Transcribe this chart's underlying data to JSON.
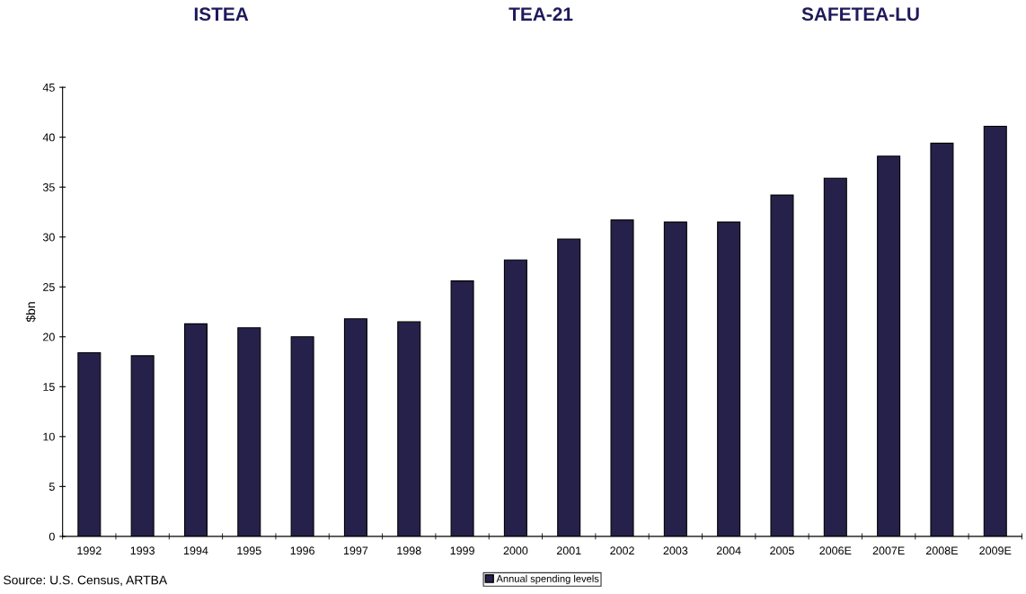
{
  "chart_data": {
    "type": "bar",
    "ylabel": "$bn",
    "categories": [
      "1992",
      "1993",
      "1994",
      "1995",
      "1996",
      "1997",
      "1998",
      "1999",
      "2000",
      "2001",
      "2002",
      "2003",
      "2004",
      "2005",
      "2006E",
      "2007E",
      "2008E",
      "2009E"
    ],
    "series": [
      {
        "name": "Annual spending levels",
        "color": "#26214a",
        "values": [
          18.4,
          18.1,
          21.3,
          20.9,
          20.0,
          21.8,
          21.5,
          25.6,
          27.7,
          29.8,
          31.7,
          31.5,
          31.5,
          34.2,
          35.9,
          38.1,
          39.4,
          41.1
        ]
      }
    ],
    "ylim": [
      0,
      45
    ],
    "yticks": [
      0,
      5,
      10,
      15,
      20,
      25,
      30,
      35,
      40,
      45
    ],
    "grid": false,
    "legend": "bottom",
    "annotations": [
      "ISTEA",
      "TEA-21",
      "SAFETEA-LU",
      "Source: U.S. Census, ARTBA"
    ]
  }
}
